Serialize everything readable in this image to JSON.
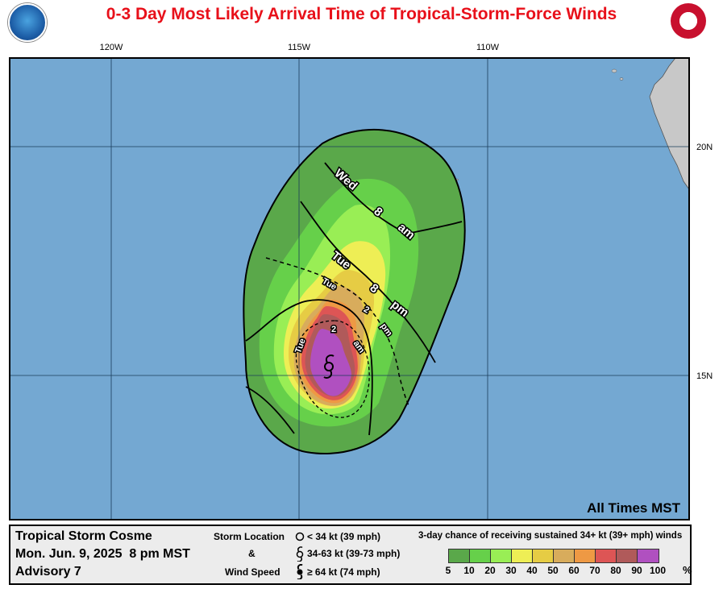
{
  "title": "0-3 Day Most Likely Arrival Time of Tropical-Storm-Force Winds",
  "logos": {
    "left": "noaa-logo",
    "right": "nws-logo"
  },
  "longitude_labels": [
    "120W",
    "115W",
    "110W"
  ],
  "latitude_labels": [
    "20N",
    "15N"
  ],
  "arrival_labels": {
    "wed_8am": [
      "Wed",
      "8",
      "am"
    ],
    "tue_8pm": [
      "Tue",
      "8",
      "pm"
    ],
    "tue_2pm": [
      "Tue",
      "2",
      "pm"
    ],
    "tue_2am": [
      "Tue",
      "2",
      "am"
    ]
  },
  "all_times": "All Times MST",
  "legend": {
    "storm_name": "Tropical Storm Cosme",
    "date": "Mon. Jun. 9, 2025  8 pm MST",
    "advisory": "Advisory 7",
    "storm_location": "Storm Location",
    "amp": "&",
    "wind_speed": "Wind Speed",
    "lt34": "< 34 kt (39 mph)",
    "kt34_63": "34-63 kt (39-73 mph)",
    "ge64": "≥ 64 kt (74 mph)",
    "prob_title": "3-day chance of receiving sustained 34+ kt (39+ mph) winds",
    "ticks": [
      "5",
      "10",
      "20",
      "30",
      "40",
      "50",
      "60",
      "70",
      "80",
      "90",
      "100"
    ],
    "pct": "%",
    "colors": [
      "#5aa84a",
      "#66d04a",
      "#99ee55",
      "#eeee55",
      "#e6cc44",
      "#d8ac5c",
      "#ee9944",
      "#dd5555",
      "#b05a5a",
      "#b050c0"
    ]
  },
  "colors": {
    "ocean": "#74a8d2",
    "land": "#c8c8c8",
    "title": "#e8101a"
  }
}
